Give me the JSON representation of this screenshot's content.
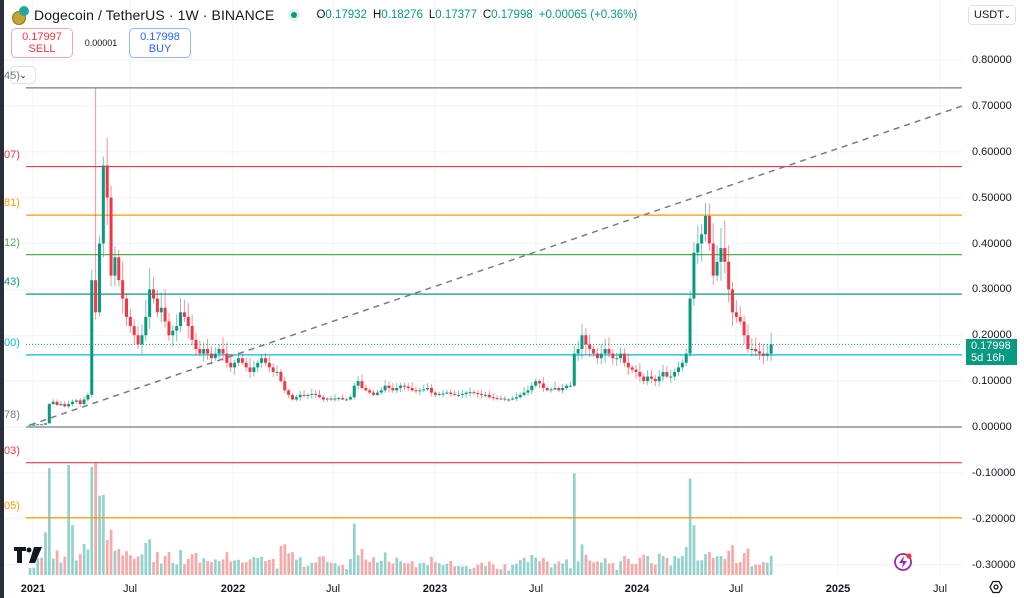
{
  "header": {
    "title": "Dogecoin / TetherUS · 1W · BINANCE",
    "ohlc": {
      "O": "0.17932",
      "H": "0.18276",
      "L": "0.17377",
      "C": "0.17998",
      "change": "+0.00065 (+0.36%)"
    }
  },
  "trade": {
    "sell_price": "0.17997",
    "sell_label": "SELL",
    "spread": "0.00001",
    "buy_price": "0.17998",
    "buy_label": "BUY"
  },
  "currency_selector": "USDT",
  "price_tag": {
    "price": "0.17998",
    "countdown": "5d 16h"
  },
  "colors": {
    "up": "#089981",
    "down": "#f23645",
    "vol_up": "#92d2cc",
    "vol_down": "#f7a9a7"
  },
  "chart_data": {
    "type": "candlestick",
    "title": "Dogecoin / TetherUS · 1W · BINANCE",
    "yaxis_ticks": [
      "0.80000",
      "0.70000",
      "0.60000",
      "0.50000",
      "0.40000",
      "0.30000",
      "0.20000",
      "0.10000",
      "0.00000",
      "-0.10000",
      "-0.20000",
      "-0.30000"
    ],
    "ylim": [
      -0.33,
      0.86
    ],
    "xaxis_ticks": [
      {
        "label": "2021",
        "bold": true
      },
      {
        "label": "Jul",
        "bold": false
      },
      {
        "label": "2022",
        "bold": true
      },
      {
        "label": "Jul",
        "bold": false
      },
      {
        "label": "2023",
        "bold": true
      },
      {
        "label": "Jul",
        "bold": false
      },
      {
        "label": "2024",
        "bold": true
      },
      {
        "label": "Jul",
        "bold": false
      },
      {
        "label": "2025",
        "bold": true
      },
      {
        "label": "Jul",
        "bold": false
      }
    ],
    "fib_levels": [
      {
        "value": 0.7393,
        "color": "#787b86",
        "label": "45)"
      },
      {
        "value": 0.5677,
        "color": "#f23645",
        "label": "07)"
      },
      {
        "value": 0.4618,
        "color": "#ff9800",
        "label": "81)"
      },
      {
        "value": 0.3758,
        "color": "#4caf50",
        "label": "12)"
      },
      {
        "value": 0.2896,
        "color": "#089981",
        "label": "43)"
      },
      {
        "value": 0.1573,
        "color": "#00bcd4",
        "label": "00)"
      },
      {
        "value": 0.0,
        "color": "#787b86",
        "label": "78)"
      },
      {
        "value": -0.0778,
        "color": "#f23645",
        "label": "03)"
      },
      {
        "value": -0.1978,
        "color": "#ff9800",
        "label": "05)"
      }
    ],
    "trendline": {
      "from": {
        "week": 0,
        "price": 0.005
      },
      "to": {
        "week": 243,
        "price": 0.7
      },
      "style": "dashed"
    },
    "last_price": 0.17998,
    "weekly_closes_approx": [
      0.005,
      0.005,
      0.006,
      0.005,
      0.008,
      0.05,
      0.055,
      0.048,
      0.05,
      0.045,
      0.05,
      0.055,
      0.058,
      0.05,
      0.06,
      0.07,
      0.32,
      0.25,
      0.4,
      0.57,
      0.5,
      0.33,
      0.37,
      0.32,
      0.28,
      0.24,
      0.22,
      0.2,
      0.18,
      0.2,
      0.24,
      0.3,
      0.28,
      0.25,
      0.26,
      0.23,
      0.2,
      0.21,
      0.22,
      0.25,
      0.24,
      0.22,
      0.19,
      0.17,
      0.16,
      0.17,
      0.16,
      0.15,
      0.16,
      0.17,
      0.16,
      0.14,
      0.13,
      0.14,
      0.15,
      0.14,
      0.13,
      0.12,
      0.13,
      0.14,
      0.15,
      0.14,
      0.13,
      0.12,
      0.12,
      0.1,
      0.08,
      0.07,
      0.06,
      0.065,
      0.07,
      0.068,
      0.07,
      0.072,
      0.07,
      0.065,
      0.06,
      0.062,
      0.06,
      0.062,
      0.063,
      0.06,
      0.06,
      0.065,
      0.09,
      0.1,
      0.085,
      0.08,
      0.075,
      0.07,
      0.075,
      0.08,
      0.09,
      0.085,
      0.08,
      0.085,
      0.09,
      0.088,
      0.085,
      0.08,
      0.078,
      0.08,
      0.082,
      0.085,
      0.075,
      0.07,
      0.072,
      0.073,
      0.075,
      0.072,
      0.07,
      0.07,
      0.072,
      0.075,
      0.076,
      0.074,
      0.072,
      0.07,
      0.07,
      0.065,
      0.063,
      0.062,
      0.062,
      0.06,
      0.06,
      0.062,
      0.065,
      0.07,
      0.075,
      0.08,
      0.09,
      0.1,
      0.095,
      0.085,
      0.08,
      0.082,
      0.085,
      0.08,
      0.085,
      0.09,
      0.09,
      0.16,
      0.17,
      0.2,
      0.18,
      0.17,
      0.16,
      0.15,
      0.16,
      0.17,
      0.16,
      0.15,
      0.15,
      0.16,
      0.14,
      0.13,
      0.125,
      0.12,
      0.11,
      0.1,
      0.11,
      0.105,
      0.1,
      0.11,
      0.12,
      0.11,
      0.11,
      0.12,
      0.13,
      0.14,
      0.16,
      0.28,
      0.38,
      0.4,
      0.42,
      0.46,
      0.4,
      0.33,
      0.36,
      0.39,
      0.36,
      0.3,
      0.25,
      0.24,
      0.23,
      0.2,
      0.17,
      0.17,
      0.165,
      0.16,
      0.155,
      0.16,
      0.18
    ]
  }
}
